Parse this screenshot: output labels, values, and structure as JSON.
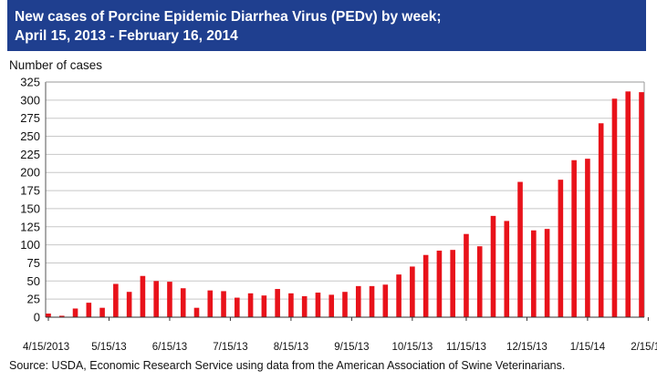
{
  "title_line1": "New cases of Porcine Epidemic Diarrhea Virus (PEDv) by week;",
  "title_line2": "April 15, 2013 - February 16, 2014",
  "source": "Source:  USDA, Economic Research Service using data from the American Association of Swine Veterinarians.",
  "colors": {
    "bar": "#e8121a",
    "title_bg": "#1f3f8f",
    "grid": "#c8c8c8"
  },
  "chart_data": {
    "type": "bar",
    "ylabel": "Number of cases",
    "ylim": [
      0,
      325
    ],
    "yticks": [
      0,
      25,
      50,
      75,
      100,
      125,
      150,
      175,
      200,
      225,
      250,
      275,
      300,
      325
    ],
    "xtick_labels": [
      "4/15/2013",
      "5/15/13",
      "6/15/13",
      "7/15/13",
      "8/15/13",
      "9/15/13",
      "10/15/13",
      "11/15/13",
      "12/15/13",
      "1/15/14",
      "2/15/14"
    ],
    "xtick_positions": [
      0,
      4.5,
      9,
      13.5,
      18,
      22.5,
      27,
      31,
      35.5,
      40,
      44.5
    ],
    "grid": "horizontal",
    "values": [
      5,
      2,
      12,
      20,
      13,
      46,
      35,
      57,
      50,
      49,
      40,
      13,
      37,
      36,
      27,
      33,
      30,
      39,
      33,
      29,
      34,
      31,
      35,
      43,
      43,
      45,
      59,
      70,
      86,
      92,
      93,
      115,
      98,
      140,
      133,
      187,
      120,
      122,
      190,
      217,
      219,
      268,
      302,
      312,
      311
    ]
  }
}
